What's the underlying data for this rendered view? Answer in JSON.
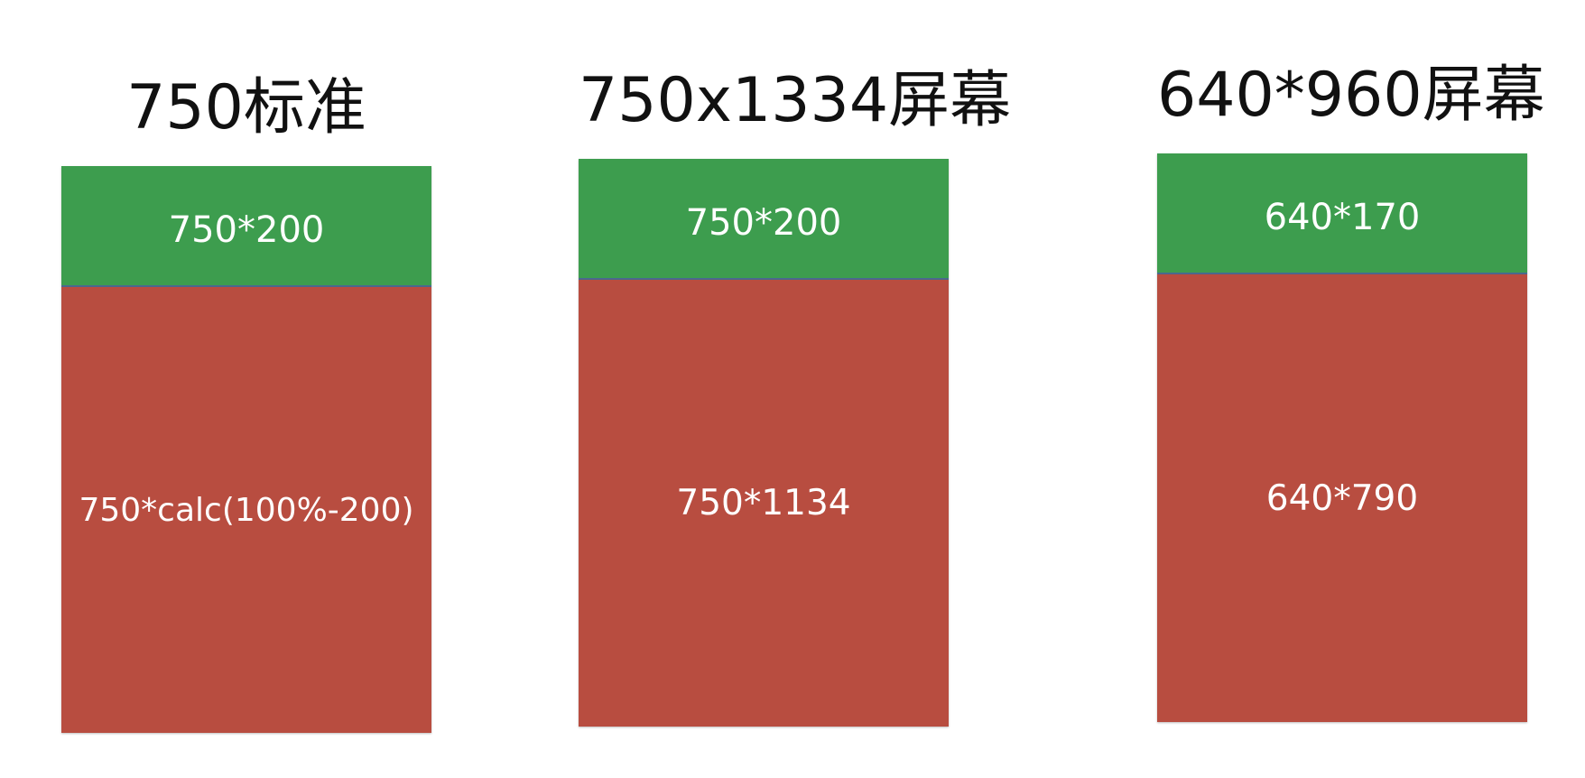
{
  "colors": {
    "header_block": "#3d9d4e",
    "content_block": "#b84d40",
    "divider": "#4a6a8e",
    "title_text": "#111111",
    "block_text": "#ffffff"
  },
  "panels": [
    {
      "title": "750标准",
      "header_label": "750*200",
      "content_label": "750*calc(100%-200)"
    },
    {
      "title": "750x1334屏幕",
      "header_label": "750*200",
      "content_label": "750*1134"
    },
    {
      "title": "640*960屏幕",
      "header_label": "640*170",
      "content_label": "640*790"
    }
  ]
}
